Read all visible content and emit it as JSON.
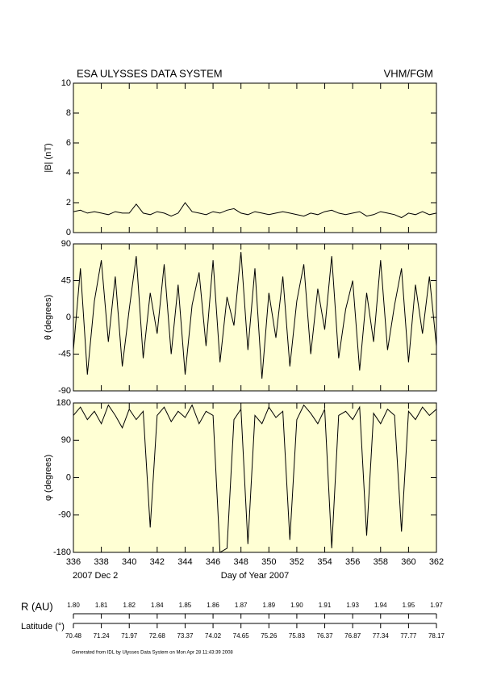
{
  "header": {
    "left": "ESA ULYSSES DATA SYSTEM",
    "right": "VHM/FGM"
  },
  "chart_data": [
    {
      "type": "line",
      "ylabel": "|B| (nT)",
      "x": [
        336,
        336.5,
        337,
        337.5,
        338,
        338.5,
        339,
        339.5,
        340,
        340.5,
        341,
        341.5,
        342,
        342.5,
        343,
        343.5,
        344,
        344.5,
        345,
        345.5,
        346,
        346.5,
        347,
        347.5,
        348,
        348.5,
        349,
        349.5,
        350,
        350.5,
        351,
        351.5,
        352,
        352.5,
        353,
        353.5,
        354,
        354.5,
        355,
        355.5,
        356,
        356.5,
        357,
        357.5,
        358,
        358.5,
        359,
        359.5,
        360,
        360.5,
        361,
        361.5,
        362
      ],
      "values": [
        1.4,
        1.5,
        1.3,
        1.4,
        1.3,
        1.2,
        1.4,
        1.3,
        1.3,
        1.9,
        1.3,
        1.2,
        1.4,
        1.3,
        1.1,
        1.3,
        2.0,
        1.4,
        1.3,
        1.2,
        1.4,
        1.3,
        1.5,
        1.6,
        1.3,
        1.2,
        1.4,
        1.3,
        1.2,
        1.3,
        1.4,
        1.3,
        1.2,
        1.1,
        1.3,
        1.2,
        1.4,
        1.5,
        1.3,
        1.2,
        1.3,
        1.4,
        1.1,
        1.2,
        1.4,
        1.3,
        1.2,
        1.0,
        1.3,
        1.2,
        1.4,
        1.2,
        1.3
      ],
      "color": "#000000",
      "xlim": [
        336,
        362
      ],
      "xticks": [
        336,
        338,
        340,
        342,
        344,
        346,
        348,
        350,
        352,
        354,
        356,
        358,
        360,
        362
      ],
      "ylim": [
        0,
        10
      ],
      "yticks": [
        0,
        2,
        4,
        6,
        8,
        10
      ]
    },
    {
      "type": "line",
      "ylabel": "θ (degrees)",
      "x": [
        336,
        336.5,
        337,
        337.5,
        338,
        338.5,
        339,
        339.5,
        340,
        340.5,
        341,
        341.5,
        342,
        342.5,
        343,
        343.5,
        344,
        344.5,
        345,
        345.5,
        346,
        346.5,
        347,
        347.5,
        348,
        348.5,
        349,
        349.5,
        350,
        350.5,
        351,
        351.5,
        352,
        352.5,
        353,
        353.5,
        354,
        354.5,
        355,
        355.5,
        356,
        356.5,
        357,
        357.5,
        358,
        358.5,
        359,
        359.5,
        360,
        360.5,
        361,
        361.5,
        362
      ],
      "values": [
        -40,
        60,
        -70,
        20,
        70,
        -30,
        50,
        -60,
        10,
        75,
        -50,
        30,
        -20,
        65,
        -45,
        40,
        -70,
        15,
        55,
        -35,
        70,
        -55,
        25,
        -10,
        80,
        -40,
        60,
        -75,
        30,
        -25,
        50,
        -60,
        20,
        65,
        -45,
        35,
        -15,
        75,
        -50,
        10,
        45,
        -65,
        30,
        -30,
        70,
        -40,
        15,
        60,
        -55,
        40,
        -20,
        50,
        -35
      ],
      "color": "#000000",
      "xlim": [
        336,
        362
      ],
      "xticks": [
        336,
        338,
        340,
        342,
        344,
        346,
        348,
        350,
        352,
        354,
        356,
        358,
        360,
        362
      ],
      "ylim": [
        -90,
        90
      ],
      "yticks": [
        -90,
        -45,
        0,
        45,
        90
      ]
    },
    {
      "type": "line",
      "ylabel": "φ (degrees)",
      "x": [
        336,
        336.5,
        337,
        337.5,
        338,
        338.5,
        339,
        339.5,
        340,
        340.5,
        341,
        341.5,
        342,
        342.5,
        343,
        343.5,
        344,
        344.5,
        345,
        345.5,
        346,
        346.5,
        347,
        347.5,
        348,
        348.5,
        349,
        349.5,
        350,
        350.5,
        351,
        351.5,
        352,
        352.5,
        353,
        353.5,
        354,
        354.5,
        355,
        355.5,
        356,
        356.5,
        357,
        357.5,
        358,
        358.5,
        359,
        359.5,
        360,
        360.5,
        361,
        361.5,
        362
      ],
      "values": [
        150,
        170,
        140,
        160,
        130,
        175,
        150,
        120,
        165,
        140,
        160,
        -120,
        150,
        170,
        135,
        160,
        145,
        175,
        130,
        160,
        150,
        -180,
        -170,
        140,
        165,
        -160,
        150,
        130,
        170,
        145,
        160,
        -150,
        140,
        175,
        155,
        130,
        165,
        -170,
        150,
        160,
        140,
        170,
        -140,
        155,
        130,
        165,
        150,
        -130,
        160,
        140,
        170,
        150,
        165
      ],
      "color": "#000000",
      "xlim": [
        336,
        362
      ],
      "xticks": [
        336,
        338,
        340,
        342,
        344,
        346,
        348,
        350,
        352,
        354,
        356,
        358,
        360,
        362
      ],
      "ylim": [
        -180,
        180
      ],
      "yticks": [
        -180,
        -90,
        0,
        90,
        180
      ]
    }
  ],
  "date_label": "2007 Dec  2",
  "xlabel": "Day of Year 2007",
  "orbit": {
    "r_label": "R (AU)",
    "r_values": [
      "1.80",
      "1.81",
      "1.82",
      "1.84",
      "1.85",
      "1.86",
      "1.87",
      "1.89",
      "1.90",
      "1.91",
      "1.93",
      "1.94",
      "1.95",
      "1.97"
    ],
    "lat_label": "Latitude (°)",
    "lat_values": [
      "70.48",
      "71.24",
      "71.97",
      "72.68",
      "73.37",
      "74.02",
      "74.65",
      "75.26",
      "75.83",
      "76.37",
      "76.87",
      "77.34",
      "77.77",
      "78.17"
    ]
  },
  "footer": "Generated from IDL by Ulysses Data System on Mon Apr 28 11:43:39 2008"
}
